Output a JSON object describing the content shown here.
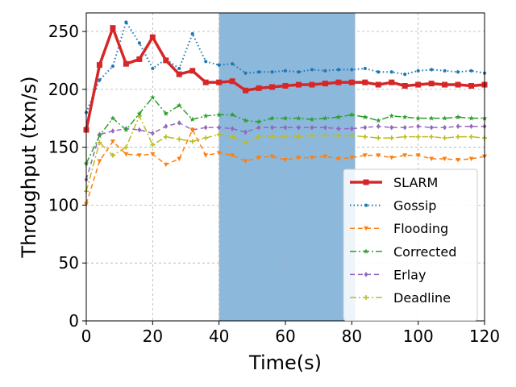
{
  "chart_data": {
    "type": "line",
    "xlabel": "Time(s)",
    "ylabel": "Throughput (txn/s)",
    "xlim": [
      0,
      120
    ],
    "ylim": [
      0,
      266
    ],
    "xticks": [
      "0",
      "20",
      "40",
      "60",
      "80",
      "100",
      "120"
    ],
    "yticks": [
      "0",
      "50",
      "100",
      "150",
      "200",
      "250"
    ],
    "grid": true,
    "legend_position": "lower-right",
    "highlight_span": {
      "from": 40,
      "to": 81,
      "color": "#8cb8dc"
    },
    "x": [
      0,
      4,
      8,
      12,
      16,
      20,
      24,
      28,
      32,
      36,
      40,
      44,
      48,
      52,
      56,
      60,
      64,
      68,
      72,
      76,
      80,
      84,
      88,
      92,
      96,
      100,
      104,
      108,
      112,
      116,
      120
    ],
    "series": [
      {
        "name": "SLARM",
        "color": "#d62728",
        "linestyle": "solid",
        "linewidth": 3.5,
        "marker": "square",
        "values": [
          165,
          221,
          253,
          222,
          226,
          245,
          225,
          213,
          216,
          206,
          206,
          207,
          199,
          201,
          202,
          203,
          204,
          204,
          205,
          206,
          206,
          206,
          204,
          206,
          203,
          204,
          205,
          204,
          204,
          203,
          204
        ]
      },
      {
        "name": "Gossip",
        "color": "#1f77b4",
        "linestyle": "dotted",
        "linewidth": 2,
        "marker": "dot",
        "values": [
          180,
          208,
          220,
          258,
          240,
          218,
          226,
          218,
          248,
          224,
          221,
          222,
          214,
          215,
          215,
          216,
          215,
          217,
          216,
          217,
          217,
          218,
          215,
          215,
          213,
          216,
          217,
          216,
          215,
          216,
          214
        ]
      },
      {
        "name": "Flooding",
        "color": "#ff7f0e",
        "linestyle": "dashed",
        "linewidth": 1.5,
        "marker": "triangle-down",
        "values": [
          101,
          138,
          155,
          144,
          143,
          144,
          135,
          140,
          165,
          143,
          145,
          143,
          138,
          141,
          142,
          139,
          141,
          141,
          142,
          140,
          141,
          143,
          143,
          141,
          143,
          143,
          140,
          140,
          139,
          140,
          142
        ]
      },
      {
        "name": "Corrected",
        "color": "#2ca02c",
        "linestyle": "dashdot",
        "linewidth": 1.5,
        "marker": "star",
        "values": [
          136,
          160,
          175,
          165,
          179,
          193,
          179,
          186,
          174,
          177,
          178,
          178,
          173,
          172,
          175,
          175,
          175,
          174,
          175,
          176,
          178,
          176,
          173,
          177,
          176,
          175,
          175,
          175,
          176,
          175,
          175
        ]
      },
      {
        "name": "Erlay",
        "color": "#9467bd",
        "linestyle": "dashed",
        "linewidth": 1.5,
        "marker": "diamond",
        "values": [
          122,
          161,
          164,
          166,
          165,
          162,
          168,
          171,
          165,
          167,
          167,
          166,
          163,
          167,
          167,
          167,
          167,
          167,
          167,
          166,
          166,
          167,
          168,
          167,
          167,
          168,
          167,
          167,
          168,
          168,
          168
        ]
      },
      {
        "name": "Deadline",
        "color": "#bcbd22",
        "linestyle": "dashdot",
        "linewidth": 1.5,
        "marker": "plus",
        "values": [
          112,
          154,
          143,
          150,
          177,
          152,
          159,
          157,
          155,
          158,
          161,
          159,
          154,
          159,
          159,
          159,
          159,
          160,
          160,
          160,
          160,
          159,
          158,
          158,
          159,
          159,
          159,
          158,
          159,
          159,
          158
        ]
      }
    ]
  }
}
